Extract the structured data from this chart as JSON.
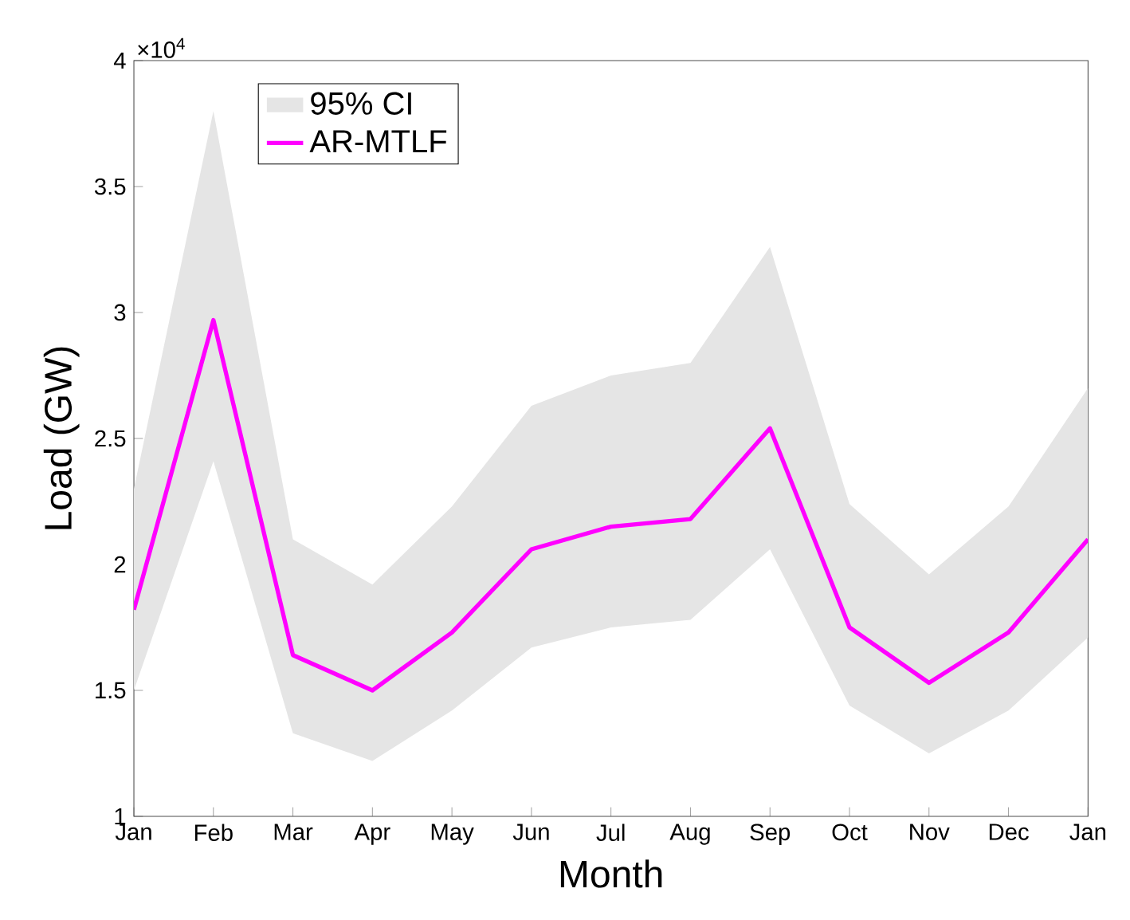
{
  "chart_data": {
    "type": "line",
    "xlabel": "Month",
    "ylabel": "Load (GW)",
    "categories": [
      "Jan",
      "Feb",
      "Mar",
      "Apr",
      "May",
      "Jun",
      "Jul",
      "Aug",
      "Sep",
      "Oct",
      "Nov",
      "Dec",
      "Jan"
    ],
    "series": [
      {
        "name": "AR-MTLF",
        "color": "#ff00ff",
        "values": [
          1.82,
          2.97,
          1.64,
          1.5,
          1.73,
          2.06,
          2.15,
          2.18,
          2.54,
          1.75,
          1.53,
          1.73,
          2.1
        ],
        "lower": [
          1.5,
          2.41,
          1.33,
          1.22,
          1.42,
          1.67,
          1.75,
          1.78,
          2.06,
          1.44,
          1.25,
          1.42,
          1.71
        ],
        "upper": [
          2.3,
          3.8,
          2.1,
          1.92,
          2.23,
          2.63,
          2.75,
          2.8,
          3.26,
          2.24,
          1.96,
          2.23,
          2.7
        ]
      }
    ],
    "ylim": [
      1,
      4
    ],
    "yticks": [
      1,
      1.5,
      2,
      2.5,
      3,
      3.5,
      4
    ],
    "annotations": [
      "×10$^{4}$",
      "95% CI"
    ],
    "legend": "top left",
    "grid": false,
    "marker": "none",
    "line_style": "solid"
  }
}
